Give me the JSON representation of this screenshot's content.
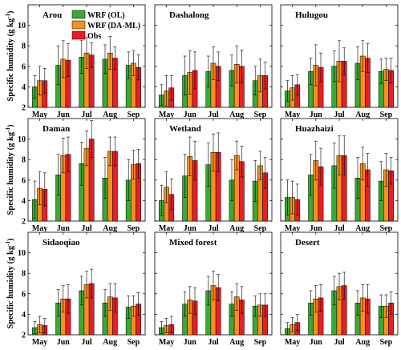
{
  "legend": [
    {
      "label": "WRF (OL)",
      "color": "#3aa935"
    },
    {
      "label": "WRF (DA-ML)",
      "color": "#f5901e"
    },
    {
      "label": "Obs",
      "color": "#e81e25"
    }
  ],
  "ylabel": "Specific humidity (g kg",
  "ylabel_sup": "-1",
  "ylabel_close": ")",
  "chart_data": [
    {
      "type": "bar",
      "title": "Arou",
      "categories": [
        "May",
        "Jun",
        "Jul",
        "Aug",
        "Sep"
      ],
      "ylim": [
        2,
        12
      ],
      "yticks": [
        2,
        4,
        6,
        8,
        10
      ],
      "series": [
        {
          "name": "WRF (OL)",
          "values": [
            4.0,
            6.1,
            6.9,
            6.7,
            6.1
          ],
          "err": [
            1.1,
            1.9,
            1.6,
            1.4,
            1.3
          ]
        },
        {
          "name": "WRF (DA-ML)",
          "values": [
            4.6,
            6.7,
            7.3,
            7.3,
            6.3
          ],
          "err": [
            1.4,
            1.8,
            1.5,
            1.6,
            1.2
          ]
        },
        {
          "name": "Obs",
          "values": [
            4.6,
            6.6,
            7.1,
            6.8,
            5.9
          ],
          "err": [
            1.2,
            1.6,
            1.2,
            1.1,
            1.2
          ]
        }
      ]
    },
    {
      "type": "bar",
      "title": "Dashalong",
      "categories": [
        "May",
        "Jun",
        "Jul",
        "Aug",
        "Sep"
      ],
      "ylim": [
        2,
        12
      ],
      "yticks": [
        2,
        4,
        6,
        8,
        10
      ],
      "series": [
        {
          "name": "WRF (OL)",
          "values": [
            3.2,
            5.1,
            5.5,
            5.6,
            4.6
          ],
          "err": [
            1.0,
            1.9,
            1.5,
            1.5,
            1.4
          ]
        },
        {
          "name": "WRF (DA-ML)",
          "values": [
            3.6,
            5.4,
            6.3,
            6.2,
            5.1
          ],
          "err": [
            1.5,
            2.1,
            1.6,
            1.8,
            1.6
          ]
        },
        {
          "name": "Obs",
          "values": [
            3.9,
            5.6,
            6.0,
            6.0,
            5.1
          ],
          "err": [
            1.2,
            1.8,
            1.4,
            1.6,
            1.3
          ]
        }
      ]
    },
    {
      "type": "bar",
      "title": "Hulugou",
      "categories": [
        "May",
        "Jun",
        "Jul",
        "Aug",
        "Sep"
      ],
      "ylim": [
        2,
        12
      ],
      "yticks": [
        2,
        4,
        6,
        8,
        10
      ],
      "series": [
        {
          "name": "WRF (OL)",
          "values": [
            3.6,
            5.5,
            6.0,
            6.3,
            5.5
          ],
          "err": [
            1.0,
            1.3,
            1.5,
            1.6,
            1.2
          ]
        },
        {
          "name": "WRF (DA-ML)",
          "values": [
            3.9,
            6.1,
            6.5,
            7.0,
            5.7
          ],
          "err": [
            1.2,
            2.0,
            2.0,
            1.5,
            1.1
          ]
        },
        {
          "name": "Obs",
          "values": [
            4.2,
            5.9,
            6.5,
            6.8,
            5.6
          ],
          "err": [
            1.0,
            1.4,
            1.3,
            1.4,
            1.2
          ]
        }
      ]
    },
    {
      "type": "bar",
      "title": "Daman",
      "categories": [
        "May",
        "Jun",
        "Jul",
        "Aug",
        "Sep"
      ],
      "ylim": [
        2,
        12
      ],
      "yticks": [
        2,
        4,
        6,
        8,
        10
      ],
      "series": [
        {
          "name": "WRF (OL)",
          "values": [
            4.1,
            6.5,
            7.6,
            6.2,
            6.0
          ],
          "err": [
            1.8,
            2.0,
            2.1,
            2.0,
            2.0
          ]
        },
        {
          "name": "WRF (DA-ML)",
          "values": [
            5.2,
            8.4,
            9.1,
            8.8,
            7.5
          ],
          "err": [
            1.6,
            1.7,
            1.7,
            1.4,
            1.4
          ]
        },
        {
          "name": "Obs",
          "values": [
            5.1,
            8.5,
            10.0,
            8.8,
            7.6
          ],
          "err": [
            1.6,
            1.7,
            1.8,
            1.4,
            1.4
          ]
        }
      ]
    },
    {
      "type": "bar",
      "title": "Wetland",
      "categories": [
        "May",
        "Jun",
        "Jul",
        "Aug",
        "Sep"
      ],
      "ylim": [
        2,
        12
      ],
      "yticks": [
        2,
        4,
        6,
        8,
        10
      ],
      "series": [
        {
          "name": "WRF (OL)",
          "values": [
            4.0,
            6.4,
            7.5,
            6.0,
            5.9
          ],
          "err": [
            1.5,
            2.1,
            2.1,
            2.0,
            2.0
          ]
        },
        {
          "name": "WRF (DA-ML)",
          "values": [
            5.3,
            8.3,
            8.7,
            8.4,
            7.4
          ],
          "err": [
            1.5,
            1.9,
            1.8,
            1.4,
            1.4
          ]
        },
        {
          "name": "Obs",
          "values": [
            4.6,
            7.9,
            8.7,
            7.8,
            6.7
          ],
          "err": [
            1.5,
            1.9,
            1.9,
            1.5,
            1.5
          ]
        }
      ]
    },
    {
      "type": "bar",
      "title": "Huazhaizi",
      "categories": [
        "May",
        "Jun",
        "Jul",
        "Aug",
        "Sep"
      ],
      "ylim": [
        2,
        12
      ],
      "yticks": [
        2,
        4,
        6,
        8,
        10
      ],
      "series": [
        {
          "name": "WRF (OL)",
          "values": [
            4.3,
            6.5,
            7.4,
            6.2,
            5.9
          ],
          "err": [
            1.7,
            2.0,
            2.2,
            2.0,
            1.9
          ]
        },
        {
          "name": "WRF (DA-ML)",
          "values": [
            4.3,
            7.9,
            8.4,
            7.6,
            7.0
          ],
          "err": [
            1.6,
            1.9,
            1.9,
            1.6,
            1.6
          ]
        },
        {
          "name": "Obs",
          "values": [
            4.1,
            7.3,
            8.4,
            7.0,
            6.9
          ],
          "err": [
            1.5,
            1.8,
            1.9,
            1.6,
            1.3
          ]
        }
      ]
    },
    {
      "type": "bar",
      "title": "Sidaoqiao",
      "categories": [
        "May",
        "Jun",
        "Jul",
        "Aug",
        "Sep"
      ],
      "ylim": [
        2,
        12
      ],
      "yticks": [
        2,
        4,
        6,
        8,
        10
      ],
      "series": [
        {
          "name": "WRF (OL)",
          "values": [
            2.7,
            5.1,
            6.3,
            5.1,
            4.7
          ],
          "err": [
            0.6,
            1.3,
            1.4,
            1.3,
            1.1
          ]
        },
        {
          "name": "WRF (DA-ML)",
          "values": [
            3.0,
            5.5,
            6.9,
            5.7,
            4.8
          ],
          "err": [
            0.8,
            1.3,
            1.3,
            1.3,
            1.0
          ]
        },
        {
          "name": "Obs",
          "values": [
            2.9,
            5.5,
            7.0,
            5.6,
            5.0
          ],
          "err": [
            0.7,
            1.4,
            1.4,
            1.4,
            1.1
          ]
        }
      ]
    },
    {
      "type": "bar",
      "title": "Mixed forest",
      "categories": [
        "May",
        "Jun",
        "Jul",
        "Aug",
        "Sep"
      ],
      "ylim": [
        2,
        12
      ],
      "yticks": [
        2,
        4,
        6,
        8,
        10
      ],
      "series": [
        {
          "name": "WRF (OL)",
          "values": [
            2.7,
            5.0,
            6.3,
            5.0,
            4.8
          ],
          "err": [
            0.6,
            1.2,
            1.4,
            1.2,
            1.0
          ]
        },
        {
          "name": "WRF (DA-ML)",
          "values": [
            2.9,
            5.4,
            6.8,
            5.7,
            4.9
          ],
          "err": [
            0.7,
            1.3,
            1.4,
            1.3,
            1.1
          ]
        },
        {
          "name": "Obs",
          "values": [
            3.0,
            5.3,
            6.6,
            5.4,
            4.9
          ],
          "err": [
            0.8,
            1.3,
            1.3,
            1.3,
            1.1
          ]
        }
      ]
    },
    {
      "type": "bar",
      "title": "Desert",
      "categories": [
        "May",
        "Jun",
        "Jul",
        "Aug",
        "Sep"
      ],
      "ylim": [
        2,
        12
      ],
      "yticks": [
        2,
        4,
        6,
        8,
        10
      ],
      "series": [
        {
          "name": "WRF (OL)",
          "values": [
            2.6,
            5.1,
            6.3,
            5.1,
            4.8
          ],
          "err": [
            0.6,
            1.2,
            1.4,
            1.2,
            1.1
          ]
        },
        {
          "name": "WRF (DA-ML)",
          "values": [
            3.0,
            5.5,
            6.7,
            5.6,
            4.8
          ],
          "err": [
            0.7,
            1.3,
            1.3,
            1.3,
            1.1
          ]
        },
        {
          "name": "Obs",
          "values": [
            3.2,
            5.6,
            6.8,
            5.5,
            5.1
          ],
          "err": [
            0.8,
            1.3,
            1.3,
            1.4,
            1.1
          ]
        }
      ]
    }
  ]
}
